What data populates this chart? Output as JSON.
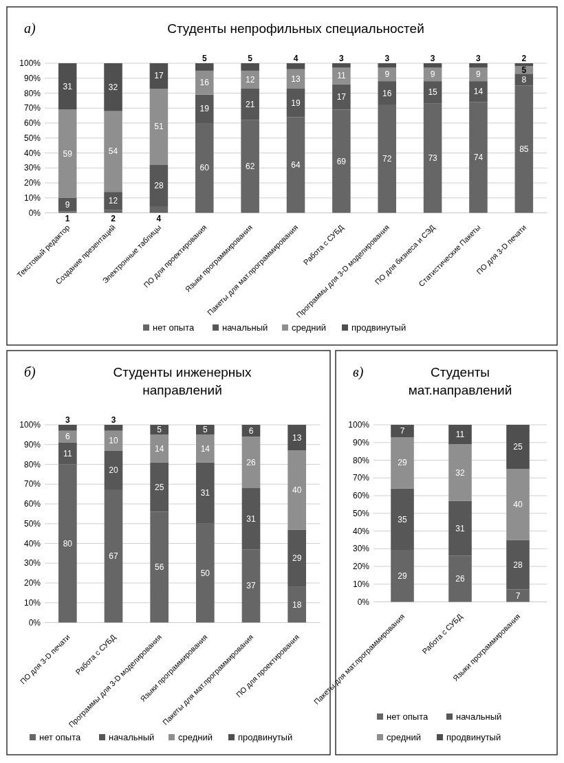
{
  "chart_data": [
    {
      "type": "bar",
      "stacked": true,
      "title": "Студенты непрофильных специальностей",
      "annotations": [
        "а)"
      ],
      "categories": [
        "Текстовый редактор",
        "Создание презентаций",
        "Электронные таблицы",
        "ПО для проектирования",
        "Языки программирования",
        "Пакеты для мат.программирования",
        "Работа с СУБД",
        "Программы для 3-D моделирования",
        "ПО для бизнеса и СЭД",
        "Статистические Пакеты",
        "ПО для 3-D печати"
      ],
      "series": [
        {
          "name": "нет опыта",
          "color": "#666666",
          "values": [
            1,
            2,
            4,
            60,
            62,
            64,
            69,
            72,
            73,
            74,
            85
          ]
        },
        {
          "name": "начальный",
          "color": "#575757",
          "values": [
            9,
            12,
            28,
            19,
            21,
            19,
            17,
            16,
            15,
            14,
            8
          ]
        },
        {
          "name": "средний",
          "color": "#8f8f8f",
          "values": [
            59,
            54,
            51,
            16,
            12,
            13,
            11,
            9,
            9,
            9,
            5
          ]
        },
        {
          "name": "продвинутый",
          "color": "#4f4f4f",
          "values": [
            31,
            32,
            17,
            5,
            5,
            4,
            3,
            3,
            3,
            3,
            2
          ]
        }
      ],
      "ylim": [
        0,
        100
      ],
      "yticks": [
        {
          "value": 0,
          "label": "0%"
        },
        {
          "value": 10,
          "label": "10%"
        },
        {
          "value": 20,
          "label": "20%"
        },
        {
          "value": 30,
          "label": "30%"
        },
        {
          "value": 40,
          "label": "40%"
        },
        {
          "value": 50,
          "label": "50%"
        },
        {
          "value": 60,
          "label": "60%"
        },
        {
          "value": 70,
          "label": "70%"
        },
        {
          "value": 80,
          "label": "80%"
        },
        {
          "value": 90,
          "label": "90%"
        },
        {
          "value": 100,
          "label": "100%"
        }
      ],
      "grid": "y",
      "legend": "bottom",
      "data_labels": true
    },
    {
      "type": "bar",
      "stacked": true,
      "title": "Студенты инженерных направлений",
      "annotations": [
        "б)"
      ],
      "categories": [
        "ПО для 3-D печати",
        "Работа с СУБД",
        "Программы для 3-D моделирования",
        "Языки программирования",
        "Пакеты для мат.программирования",
        "ПО для проектирования"
      ],
      "series": [
        {
          "name": "нет опыта",
          "color": "#666666",
          "values": [
            80,
            67,
            56,
            50,
            37,
            18
          ]
        },
        {
          "name": "начальный",
          "color": "#575757",
          "values": [
            11,
            20,
            25,
            31,
            31,
            29
          ]
        },
        {
          "name": "средний",
          "color": "#8f8f8f",
          "values": [
            6,
            10,
            14,
            14,
            26,
            40
          ]
        },
        {
          "name": "продвинутый",
          "color": "#4f4f4f",
          "values": [
            3,
            3,
            5,
            5,
            6,
            13
          ]
        }
      ],
      "ylim": [
        0,
        100
      ],
      "yticks": [
        {
          "value": 0,
          "label": "0%"
        },
        {
          "value": 10,
          "label": "10%"
        },
        {
          "value": 20,
          "label": "20%"
        },
        {
          "value": 30,
          "label": "30%"
        },
        {
          "value": 40,
          "label": "40%"
        },
        {
          "value": 50,
          "label": "50%"
        },
        {
          "value": 60,
          "label": "60%"
        },
        {
          "value": 70,
          "label": "70%"
        },
        {
          "value": 80,
          "label": "80%"
        },
        {
          "value": 90,
          "label": "90%"
        },
        {
          "value": 100,
          "label": "100%"
        }
      ],
      "grid": "y",
      "legend": "bottom",
      "data_labels": true
    },
    {
      "type": "bar",
      "stacked": true,
      "title": "Студенты мат.направлений",
      "annotations": [
        "в)"
      ],
      "categories": [
        "Пакеты для мат.программирования",
        "Работа с СУБД",
        "Языки программирования"
      ],
      "series": [
        {
          "name": "нет опыта",
          "color": "#666666",
          "values": [
            29,
            26,
            7
          ]
        },
        {
          "name": "начальный",
          "color": "#575757",
          "values": [
            35,
            31,
            28
          ]
        },
        {
          "name": "средний",
          "color": "#8f8f8f",
          "values": [
            29,
            32,
            40
          ]
        },
        {
          "name": "продвинутый",
          "color": "#4f4f4f",
          "values": [
            7,
            11,
            25
          ]
        }
      ],
      "ylim": [
        0,
        100
      ],
      "yticks": [
        {
          "value": 0,
          "label": "0%"
        },
        {
          "value": 10,
          "label": "10%"
        },
        {
          "value": 20,
          "label": "20%"
        },
        {
          "value": 30,
          "label": "30%"
        },
        {
          "value": 40,
          "label": "40%"
        },
        {
          "value": 50,
          "label": "50%"
        },
        {
          "value": 60,
          "label": "60%"
        },
        {
          "value": 70,
          "label": "70%"
        },
        {
          "value": 80,
          "label": "80%"
        },
        {
          "value": 90,
          "label": "90%"
        },
        {
          "value": 100,
          "label": "100%"
        }
      ],
      "grid": "y",
      "legend": "bottom",
      "data_labels": true
    }
  ]
}
